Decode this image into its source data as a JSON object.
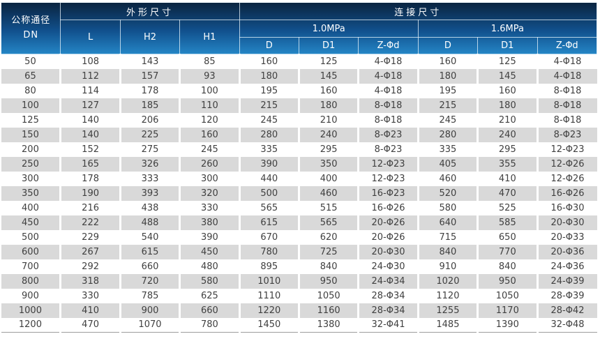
{
  "table": {
    "header": {
      "dn_line1": "公称通径",
      "dn_line2": "DN",
      "outline_group": "外形尺寸",
      "connection_group": "连接尺寸",
      "col_l": "L",
      "col_h2": "H2",
      "col_h1": "H1",
      "pressures": [
        "1.0MPa",
        "1.6MPa"
      ],
      "sub_cols": [
        "D",
        "D1",
        "Z-Φd"
      ]
    },
    "rows": [
      [
        "50",
        "108",
        "143",
        "85",
        "160",
        "125",
        "4-Φ18",
        "160",
        "125",
        "4-Φ18"
      ],
      [
        "65",
        "112",
        "157",
        "93",
        "180",
        "145",
        "4-Φ18",
        "180",
        "145",
        "4-Φ18"
      ],
      [
        "80",
        "114",
        "178",
        "100",
        "195",
        "160",
        "4-Φ18",
        "195",
        "160",
        "8-Φ18"
      ],
      [
        "100",
        "127",
        "185",
        "110",
        "215",
        "180",
        "8-Φ18",
        "215",
        "180",
        "8-Φ18"
      ],
      [
        "125",
        "140",
        "206",
        "120",
        "245",
        "210",
        "8-Φ18",
        "245",
        "210",
        "8-Φ18"
      ],
      [
        "150",
        "140",
        "225",
        "160",
        "280",
        "240",
        "8-Φ23",
        "280",
        "240",
        "8-Φ23"
      ],
      [
        "200",
        "152",
        "275",
        "245",
        "335",
        "295",
        "8-Φ23",
        "335",
        "295",
        "12-Φ23"
      ],
      [
        "250",
        "165",
        "326",
        "260",
        "390",
        "350",
        "12-Φ23",
        "405",
        "355",
        "12-Φ26"
      ],
      [
        "300",
        "178",
        "333",
        "300",
        "440",
        "400",
        "12-Φ23",
        "460",
        "410",
        "12-Φ26"
      ],
      [
        "350",
        "190",
        "393",
        "320",
        "500",
        "460",
        "16-Φ23",
        "520",
        "470",
        "16-Φ26"
      ],
      [
        "400",
        "216",
        "438",
        "330",
        "565",
        "515",
        "16-Φ26",
        "580",
        "525",
        "16-Φ30"
      ],
      [
        "450",
        "222",
        "488",
        "380",
        "615",
        "565",
        "20-Φ26",
        "640",
        "585",
        "20-Φ30"
      ],
      [
        "500",
        "229",
        "540",
        "390",
        "670",
        "620",
        "20-Φ26",
        "715",
        "650",
        "20-Φ33"
      ],
      [
        "600",
        "267",
        "615",
        "450",
        "780",
        "725",
        "20-Φ30",
        "840",
        "770",
        "20-Φ36"
      ],
      [
        "700",
        "292",
        "660",
        "480",
        "895",
        "840",
        "24-Φ30",
        "910",
        "840",
        "24-Φ36"
      ],
      [
        "800",
        "318",
        "720",
        "580",
        "1010",
        "950",
        "24-Φ34",
        "1020",
        "950",
        "24-Φ39"
      ],
      [
        "900",
        "330",
        "785",
        "625",
        "1110",
        "1050",
        "28-Φ34",
        "1120",
        "1050",
        "28-Φ39"
      ],
      [
        "1000",
        "410",
        "900",
        "660",
        "1220",
        "1160",
        "28-Φ34",
        "1255",
        "1170",
        "28-Φ42"
      ],
      [
        "1200",
        "470",
        "1070",
        "780",
        "1450",
        "1380",
        "32-Φ41",
        "1485",
        "1390",
        "32-Φ48"
      ]
    ]
  },
  "colors": {
    "header_gradient_top": "#0a2440",
    "header_gradient_bottom": "#2587c7",
    "header_text": "#ffffff",
    "row_stripe": "#d9d9d9",
    "row_plain": "#ffffff",
    "data_text": "#404040",
    "bottom_rule": "#9c9c9c"
  }
}
